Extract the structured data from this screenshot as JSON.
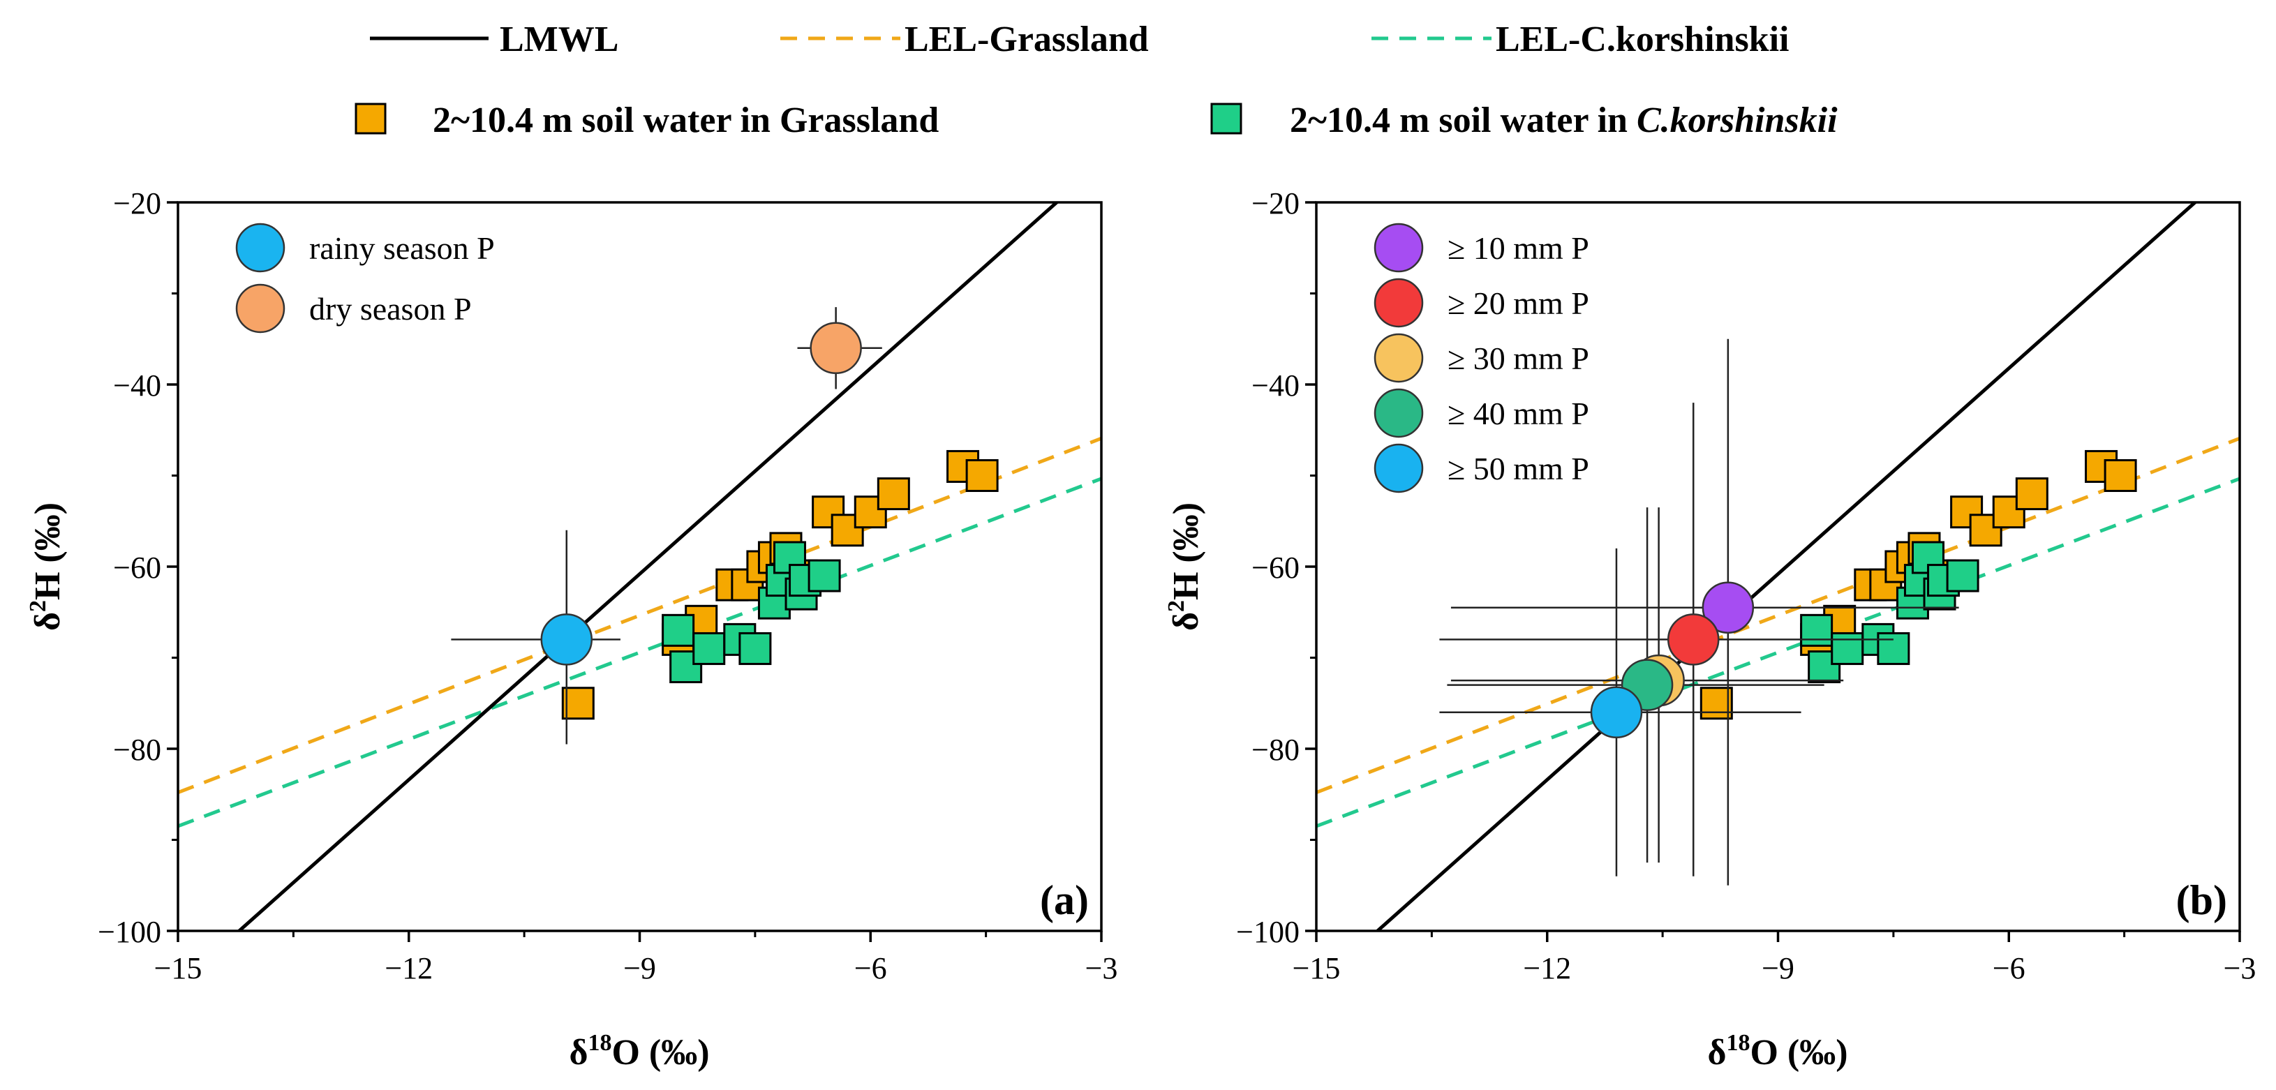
{
  "colors": {
    "lmwl": "#000000",
    "lel_grassland": "#F0A818",
    "lel_ck": "#22C98E",
    "grassland_marker": "#F5A800",
    "ck_marker": "#1FCF88",
    "rainy": "#1AB4F0",
    "dry": "#F7A467",
    "p10": "#A64DF2",
    "p20": "#F23A3A",
    "p30": "#F7C35E",
    "p40": "#2AB886",
    "p50": "#19B2F0"
  },
  "legend": {
    "lmwl": "LMWL",
    "lel_grassland": "LEL-Grassland",
    "lel_ck": "LEL-C.korshinskii",
    "grassland_soil": "2~10.4 m soil water in Grassland",
    "ck_soil_prefix": "2~10.4 m soil water in ",
    "ck_soil_italic": "C.korshinskii"
  },
  "chart_data": [
    {
      "type": "scatter",
      "panel": "(a)",
      "xlabel_base": "δ",
      "xlabel_sup": "18",
      "xlabel_end": "O (‰)",
      "ylabel_base": "δ",
      "ylabel_sup": "2",
      "ylabel_end": "H (‰)",
      "xlim": [
        -15,
        -3
      ],
      "ylim": [
        -100,
        -20
      ],
      "xticks": [
        -15,
        -12,
        -9,
        -6,
        -3
      ],
      "yticks": [
        -100,
        -80,
        -60,
        -40,
        -20
      ],
      "xtick_labels": [
        "−15",
        "−12",
        "−9",
        "−6",
        "−3"
      ],
      "ytick_labels": [
        "−100",
        "−80",
        "−60",
        "−40",
        "−20"
      ],
      "lines": {
        "lmwl": {
          "slope": 7.53,
          "intercept": 6.96
        },
        "lel_grassland": {
          "slope": 3.24,
          "intercept": -36.2
        },
        "lel_ck": {
          "slope": 3.18,
          "intercept": -40.8
        }
      },
      "series": [
        {
          "name": "2~10.4 m soil water in Grassland",
          "points": [
            [
              -9.8,
              -75
            ],
            [
              -8.5,
              -68
            ],
            [
              -8.2,
              -66
            ],
            [
              -7.8,
              -62
            ],
            [
              -7.6,
              -62
            ],
            [
              -7.4,
              -60
            ],
            [
              -7.25,
              -59
            ],
            [
              -7.1,
              -58
            ],
            [
              -6.9,
              -61
            ],
            [
              -6.55,
              -54
            ],
            [
              -6.3,
              -56
            ],
            [
              -6.0,
              -54
            ],
            [
              -5.7,
              -52
            ],
            [
              -4.8,
              -49
            ],
            [
              -4.55,
              -50
            ]
          ]
        },
        {
          "name": "2~10.4 m soil water in C.korshinskii",
          "points": [
            [
              -8.5,
              -67
            ],
            [
              -8.4,
              -71
            ],
            [
              -8.1,
              -69
            ],
            [
              -7.7,
              -68
            ],
            [
              -7.5,
              -69
            ],
            [
              -7.25,
              -64
            ],
            [
              -7.15,
              -61.5
            ],
            [
              -7.05,
              -59
            ],
            [
              -6.9,
              -63
            ],
            [
              -6.85,
              -61.5
            ],
            [
              -6.6,
              -61
            ]
          ]
        }
      ],
      "inset_legend": [
        "rainy season P",
        "dry season P"
      ],
      "precip": [
        {
          "name": "rainy season P",
          "x": -9.95,
          "y": -68,
          "xerr_left": 1.5,
          "xerr_right": 0.7,
          "yerr_low": 11.5,
          "yerr_high": 12
        },
        {
          "name": "dry season P",
          "x": -6.45,
          "y": -36,
          "xerr_left": 0.5,
          "xerr_right": 0.6,
          "yerr_low": 4.5,
          "yerr_high": 4.5
        }
      ]
    },
    {
      "type": "scatter",
      "panel": "(b)",
      "xlabel_base": "δ",
      "xlabel_sup": "18",
      "xlabel_end": "O (‰)",
      "ylabel_base": "δ",
      "ylabel_sup": "2",
      "ylabel_end": "H (‰)",
      "xlim": [
        -15,
        -3
      ],
      "ylim": [
        -100,
        -20
      ],
      "xticks": [
        -15,
        -12,
        -9,
        -6,
        -3
      ],
      "yticks": [
        -100,
        -80,
        -60,
        -40,
        -20
      ],
      "xtick_labels": [
        "−15",
        "−12",
        "−9",
        "−6",
        "−3"
      ],
      "ytick_labels": [
        "−100",
        "−80",
        "−60",
        "−40",
        "−20"
      ],
      "lines": {
        "lmwl": {
          "slope": 7.53,
          "intercept": 6.96
        },
        "lel_grassland": {
          "slope": 3.24,
          "intercept": -36.2
        },
        "lel_ck": {
          "slope": 3.18,
          "intercept": -40.8
        }
      },
      "series": [
        {
          "name": "2~10.4 m soil water in Grassland",
          "points": [
            [
              -9.8,
              -75
            ],
            [
              -8.5,
              -68
            ],
            [
              -8.2,
              -66
            ],
            [
              -7.8,
              -62
            ],
            [
              -7.6,
              -62
            ],
            [
              -7.4,
              -60
            ],
            [
              -7.25,
              -59
            ],
            [
              -7.1,
              -58
            ],
            [
              -6.9,
              -61
            ],
            [
              -6.55,
              -54
            ],
            [
              -6.3,
              -56
            ],
            [
              -6.0,
              -54
            ],
            [
              -5.7,
              -52
            ],
            [
              -4.8,
              -49
            ],
            [
              -4.55,
              -50
            ]
          ]
        },
        {
          "name": "2~10.4 m soil water in C.korshinskii",
          "points": [
            [
              -8.5,
              -67
            ],
            [
              -8.4,
              -71
            ],
            [
              -8.1,
              -69
            ],
            [
              -7.7,
              -68
            ],
            [
              -7.5,
              -69
            ],
            [
              -7.25,
              -64
            ],
            [
              -7.15,
              -61.5
            ],
            [
              -7.05,
              -59
            ],
            [
              -6.9,
              -63
            ],
            [
              -6.85,
              -61.5
            ],
            [
              -6.6,
              -61
            ]
          ]
        }
      ],
      "inset_legend": [
        "≥ 10 mm P",
        "≥ 20 mm P",
        "≥ 30 mm P",
        "≥ 40 mm P",
        "≥ 50 mm P"
      ],
      "precip": [
        {
          "name": "≥ 10 mm P",
          "x": -9.65,
          "y": -64.5,
          "xerr_left": 3.6,
          "xerr_right": 3.0,
          "yerr_low": 30.5,
          "yerr_high": 29.5
        },
        {
          "name": "≥ 20 mm P",
          "x": -10.1,
          "y": -68,
          "xerr_left": 3.3,
          "xerr_right": 2.6,
          "yerr_low": 26,
          "yerr_high": 26
        },
        {
          "name": "≥ 30 mm P",
          "x": -10.55,
          "y": -72.5,
          "xerr_left": 2.7,
          "xerr_right": 2.4,
          "yerr_low": 20,
          "yerr_high": 19
        },
        {
          "name": "≥ 40 mm P",
          "x": -10.7,
          "y": -73,
          "xerr_left": 2.6,
          "xerr_right": 2.3,
          "yerr_low": 19.5,
          "yerr_high": 19.5
        },
        {
          "name": "≥ 50 mm P",
          "x": -11.1,
          "y": -76,
          "xerr_left": 2.3,
          "xerr_right": 2.4,
          "yerr_low": 18,
          "yerr_high": 18
        }
      ]
    }
  ]
}
